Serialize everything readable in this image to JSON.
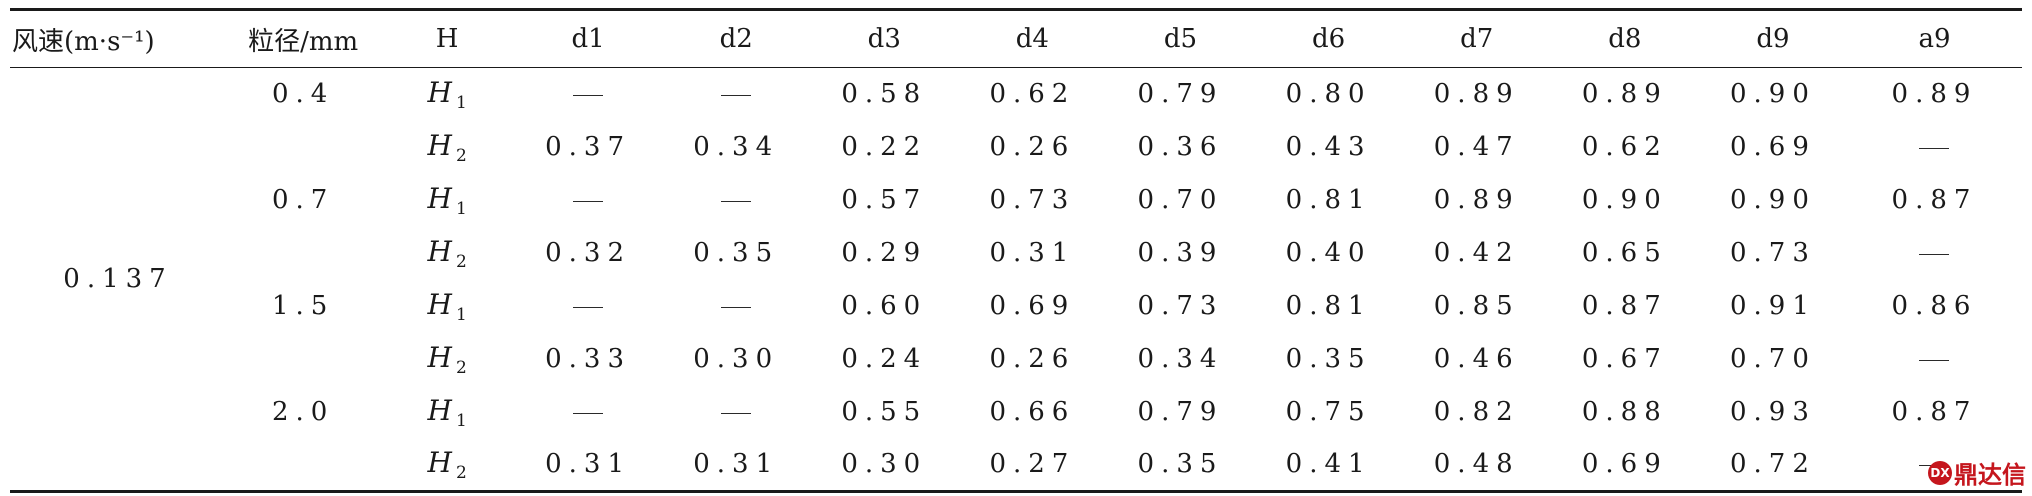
{
  "table": {
    "headers": [
      "风速(m·s⁻¹)",
      "粒径/mm",
      "H",
      "d1",
      "d2",
      "d3",
      "d4",
      "d5",
      "d6",
      "d7",
      "d8",
      "d9",
      "a9"
    ],
    "wind_speed": "0.137",
    "dash": "—",
    "rows": [
      {
        "size": "0.4",
        "h": "H",
        "hsub": "1",
        "vals": [
          "—",
          "—",
          "0.58",
          "0.62",
          "0.79",
          "0.80",
          "0.89",
          "0.89",
          "0.90",
          "0.89"
        ]
      },
      {
        "size": "",
        "h": "H",
        "hsub": "2",
        "vals": [
          "0.37",
          "0.34",
          "0.22",
          "0.26",
          "0.36",
          "0.43",
          "0.47",
          "0.62",
          "0.69",
          "—"
        ]
      },
      {
        "size": "0.7",
        "h": "H",
        "hsub": "1",
        "vals": [
          "—",
          "—",
          "0.57",
          "0.73",
          "0.70",
          "0.81",
          "0.89",
          "0.90",
          "0.90",
          "0.87"
        ]
      },
      {
        "size": "",
        "h": "H",
        "hsub": "2",
        "vals": [
          "0.32",
          "0.35",
          "0.29",
          "0.31",
          "0.39",
          "0.40",
          "0.42",
          "0.65",
          "0.73",
          "—"
        ]
      },
      {
        "size": "1.5",
        "h": "H",
        "hsub": "1",
        "vals": [
          "—",
          "—",
          "0.60",
          "0.69",
          "0.73",
          "0.81",
          "0.85",
          "0.87",
          "0.91",
          "0.86"
        ]
      },
      {
        "size": "",
        "h": "H",
        "hsub": "2",
        "vals": [
          "0.33",
          "0.30",
          "0.24",
          "0.26",
          "0.34",
          "0.35",
          "0.46",
          "0.67",
          "0.70",
          "—"
        ]
      },
      {
        "size": "2.0",
        "h": "H",
        "hsub": "1",
        "vals": [
          "—",
          "—",
          "0.55",
          "0.66",
          "0.79",
          "0.75",
          "0.82",
          "0.88",
          "0.93",
          "0.87"
        ]
      },
      {
        "size": "",
        "h": "H",
        "hsub": "2",
        "vals": [
          "0.31",
          "0.31",
          "0.30",
          "0.27",
          "0.35",
          "0.41",
          "0.48",
          "0.69",
          "0.72",
          "—"
        ]
      }
    ]
  },
  "watermark": {
    "text": "鼎达信",
    "logo": "DX"
  }
}
